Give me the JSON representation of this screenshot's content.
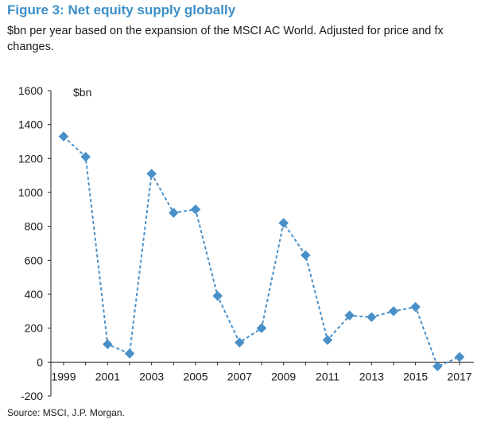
{
  "chart_data": {
    "type": "line",
    "title": "Figure 3: Net equity supply globally",
    "subtitle": "$bn per year based on the expansion of the MSCI AC World. Adjusted for price and fx changes.",
    "unit_label": "$bn",
    "x": [
      1999,
      2000,
      2001,
      2002,
      2003,
      2004,
      2005,
      2006,
      2007,
      2008,
      2009,
      2010,
      2011,
      2012,
      2013,
      2014,
      2015,
      2016,
      2017
    ],
    "x_tick_labels": [
      "1999",
      "2001",
      "2003",
      "2005",
      "2007",
      "2009",
      "2011",
      "2013",
      "2015",
      "2017"
    ],
    "series": [
      {
        "values": [
          1330,
          1210,
          105,
          50,
          1110,
          880,
          900,
          390,
          115,
          200,
          820,
          630,
          130,
          275,
          265,
          300,
          325,
          -25,
          30
        ],
        "color": "#4a90c8",
        "line_style": "dashed",
        "marker": "diamond"
      }
    ],
    "ylim": [
      -200,
      1600
    ],
    "y_ticks": [
      -200,
      0,
      200,
      400,
      600,
      800,
      1000,
      1200,
      1400,
      1600
    ],
    "y_tick_labels": [
      "-200",
      "0",
      "200",
      "400",
      "600",
      "800",
      "1000",
      "1200",
      "1400",
      "1600"
    ],
    "grid": false,
    "source": "Source: MSCI, J.P. Morgan."
  }
}
